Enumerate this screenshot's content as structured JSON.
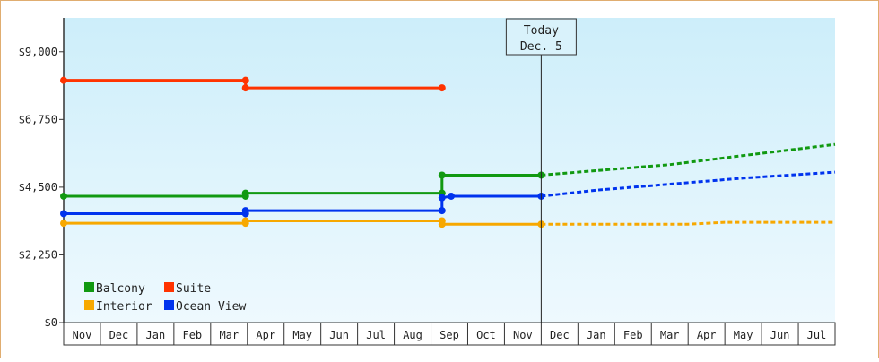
{
  "chart_data": {
    "type": "line",
    "style": "step",
    "title": "",
    "xlabel": "",
    "ylabel": "",
    "ylim": [
      0,
      10125
    ],
    "yticks": [
      {
        "value": 0,
        "label": "$0"
      },
      {
        "value": 2250,
        "label": "$2,250"
      },
      {
        "value": 4500,
        "label": "$4,500"
      },
      {
        "value": 6750,
        "label": "$6,750"
      },
      {
        "value": 9000,
        "label": "$9,000"
      }
    ],
    "x_months": [
      "Nov",
      "Dec",
      "Jan",
      "Feb",
      "Mar",
      "Apr",
      "May",
      "Jun",
      "Jul",
      "Aug",
      "Sep",
      "Oct",
      "Nov",
      "Dec",
      "Jan",
      "Feb",
      "Mar",
      "Apr",
      "May",
      "Jun",
      "Jul"
    ],
    "today": {
      "line1": "Today",
      "line2": "Dec. 5",
      "x": 13.0
    },
    "legend": {
      "position": "bottom-left"
    },
    "grid": false,
    "background": {
      "top": "#cdeefa",
      "bottom": "#eef9fe"
    },
    "series": [
      {
        "name": "Balcony",
        "color": "#119911",
        "points": [
          [
            0,
            4200
          ],
          [
            4.95,
            4200
          ],
          [
            4.95,
            4300
          ],
          [
            10.3,
            4300
          ],
          [
            10.3,
            4900
          ],
          [
            13.0,
            4900
          ]
        ],
        "markers": [
          [
            0,
            4200
          ],
          [
            4.95,
            4200
          ],
          [
            4.95,
            4300
          ],
          [
            10.3,
            4300
          ],
          [
            10.3,
            4900
          ],
          [
            13.0,
            4900
          ]
        ],
        "forecast": [
          [
            13.0,
            4900
          ],
          [
            14.5,
            5050
          ],
          [
            16.5,
            5250
          ],
          [
            18.5,
            5550
          ],
          [
            21.0,
            5920
          ]
        ]
      },
      {
        "name": "Suite",
        "color": "#ff3300",
        "points": [
          [
            0,
            8050
          ],
          [
            4.95,
            8050
          ],
          [
            4.95,
            7800
          ],
          [
            10.3,
            7800
          ]
        ],
        "markers": [
          [
            0,
            8050
          ],
          [
            4.95,
            8050
          ],
          [
            4.95,
            7800
          ],
          [
            10.3,
            7800
          ]
        ],
        "forecast": []
      },
      {
        "name": "Interior",
        "color": "#f7a800",
        "points": [
          [
            0,
            3300
          ],
          [
            4.95,
            3300
          ],
          [
            4.95,
            3380
          ],
          [
            10.3,
            3380
          ],
          [
            10.3,
            3270
          ],
          [
            13.0,
            3270
          ]
        ],
        "markers": [
          [
            0,
            3300
          ],
          [
            4.95,
            3300
          ],
          [
            4.95,
            3380
          ],
          [
            10.3,
            3380
          ],
          [
            10.3,
            3270
          ],
          [
            13.0,
            3270
          ]
        ],
        "forecast": [
          [
            13.0,
            3270
          ],
          [
            17.0,
            3270
          ],
          [
            18.0,
            3330
          ],
          [
            21.0,
            3330
          ]
        ]
      },
      {
        "name": "Ocean View",
        "color": "#0033ee",
        "points": [
          [
            0,
            3620
          ],
          [
            4.95,
            3620
          ],
          [
            4.95,
            3720
          ],
          [
            10.3,
            3720
          ],
          [
            10.3,
            4150
          ],
          [
            10.55,
            4200
          ],
          [
            13.0,
            4200
          ]
        ],
        "markers": [
          [
            0,
            3620
          ],
          [
            4.95,
            3620
          ],
          [
            4.95,
            3720
          ],
          [
            10.3,
            3720
          ],
          [
            10.3,
            4150
          ],
          [
            10.55,
            4200
          ],
          [
            13.0,
            4200
          ]
        ],
        "forecast": [
          [
            13.0,
            4200
          ],
          [
            14.5,
            4400
          ],
          [
            16.5,
            4600
          ],
          [
            18.5,
            4800
          ],
          [
            21.0,
            5000
          ]
        ]
      }
    ],
    "legend_order": [
      "Balcony",
      "Suite",
      "Interior",
      "Ocean View"
    ]
  }
}
